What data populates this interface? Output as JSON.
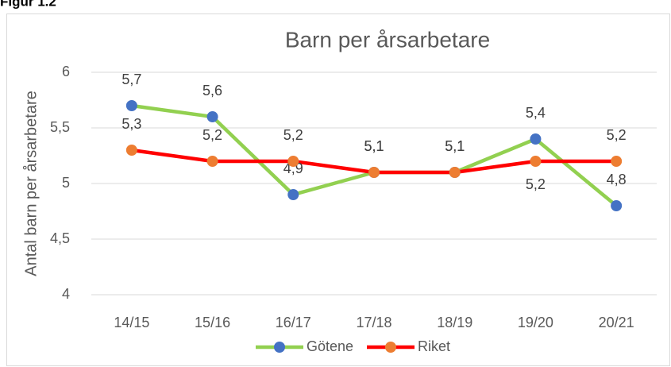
{
  "figure_caption": "Figur 1.2",
  "chart_data": {
    "type": "line",
    "title": "Barn per årsarbetare",
    "y_label": "Antal barn per årsarbetare",
    "categories": [
      "14/15",
      "15/16",
      "16/17",
      "17/18",
      "18/19",
      "19/20",
      "20/21"
    ],
    "series": [
      {
        "name": "Götene",
        "color": "#92d050",
        "marker_color": "#4472c4",
        "values": [
          5.7,
          5.6,
          4.9,
          5.1,
          5.1,
          5.4,
          4.8
        ],
        "value_labels": [
          "5,7",
          "5,6",
          "4,9",
          "5,1",
          "5,1",
          "5,4",
          "4,8"
        ]
      },
      {
        "name": "Riket",
        "color": "#ff0000",
        "marker_color": "#ed7d31",
        "values": [
          5.3,
          5.2,
          5.2,
          5.1,
          5.1,
          5.2,
          5.2
        ],
        "value_labels": [
          "5,3",
          "5,2",
          "5,2",
          "5,1",
          "5,1",
          "5,2",
          "5,2"
        ]
      }
    ],
    "ylim": [
      4,
      6
    ],
    "yticks": [
      4,
      {
        "value": 4.5,
        "label": "4,5"
      },
      5,
      {
        "value": 5.5,
        "label": "5,5"
      },
      6
    ],
    "grid": true,
    "legend": "bottom"
  }
}
